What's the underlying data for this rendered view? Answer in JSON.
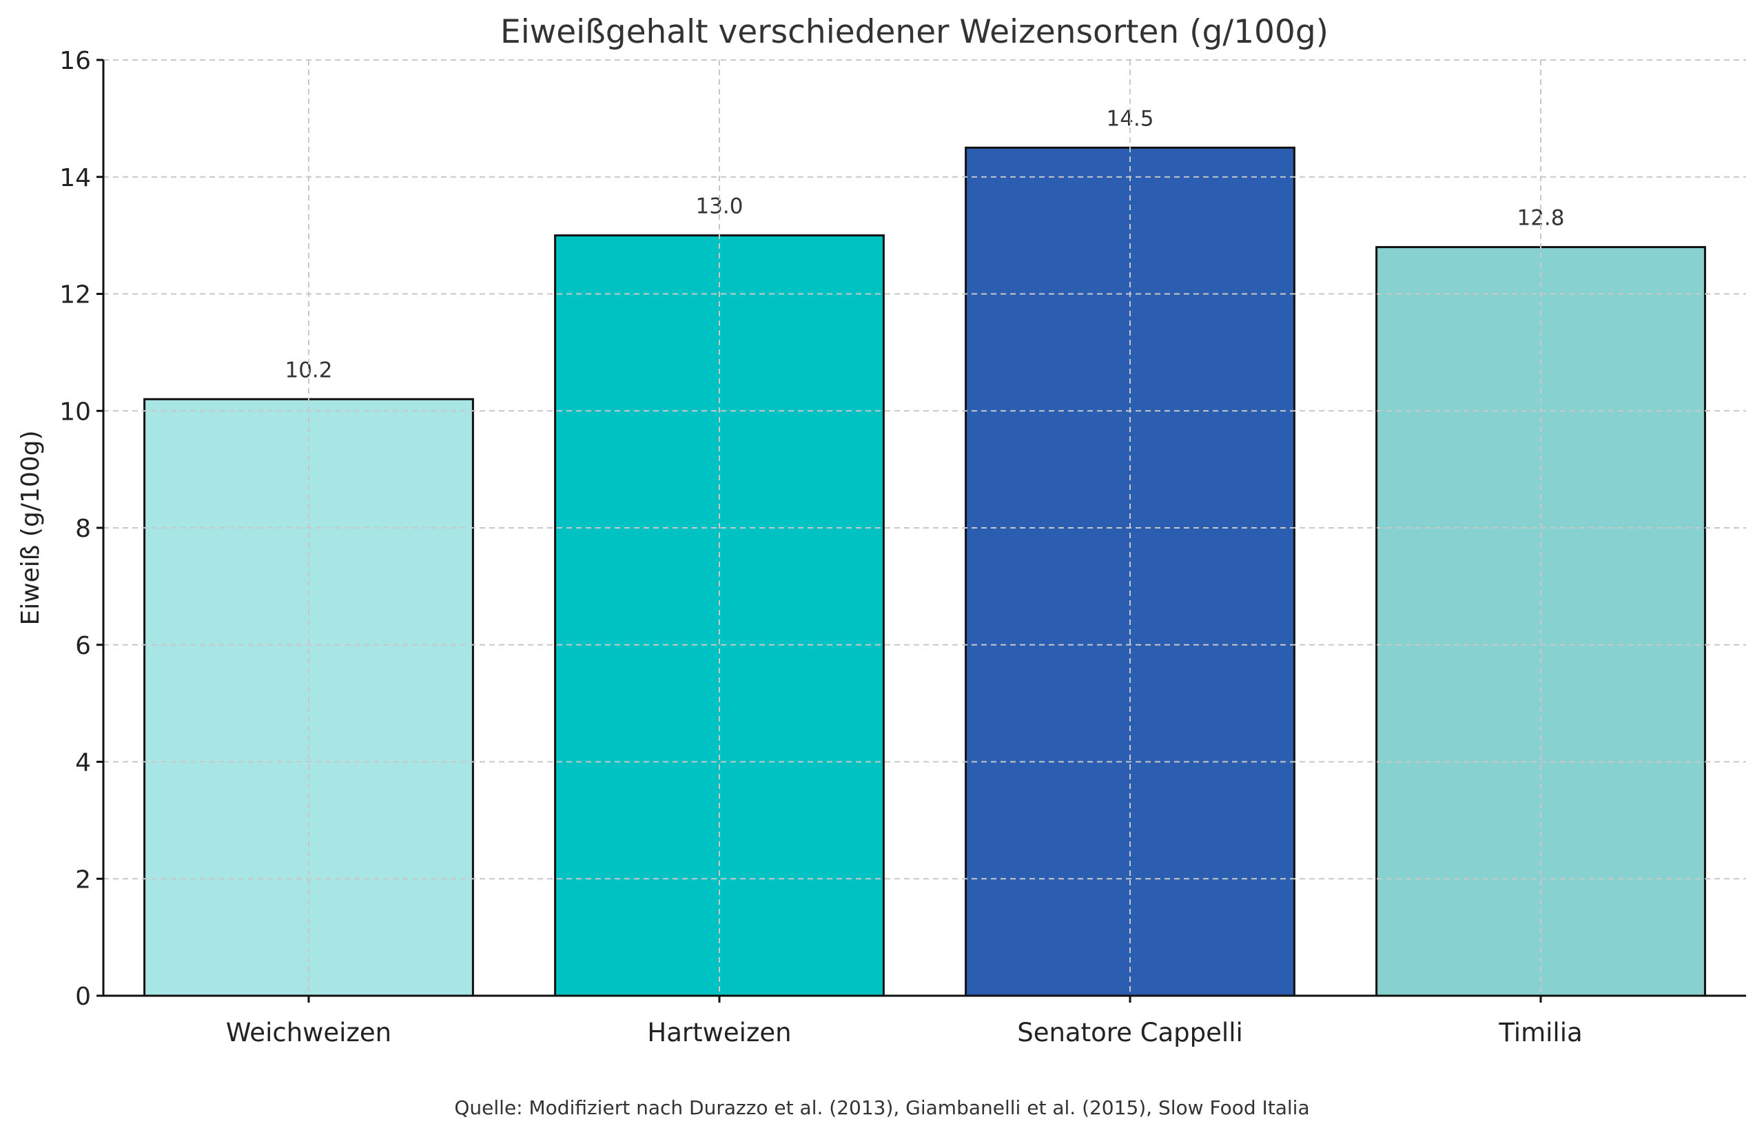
{
  "chart_data": {
    "type": "bar",
    "title": "Eiweißgehalt verschiedener Weizensorten (g/100g)",
    "xlabel": "",
    "ylabel": "Eiweiß (g/100g)",
    "categories": [
      "Weichweizen",
      "Hartweizen",
      "Senatore Cappelli",
      "Timilia"
    ],
    "values": [
      10.2,
      13.0,
      14.5,
      12.8
    ],
    "data_labels": [
      "10.2",
      "13.0",
      "14.5",
      "12.8"
    ],
    "colors": [
      "#a8e6e6",
      "#00c2c2",
      "#2b5db1",
      "#87d1d1"
    ],
    "ylim": [
      0,
      16
    ],
    "yticks": [
      0,
      2,
      4,
      6,
      8,
      10,
      12,
      14,
      16
    ],
    "grid": true,
    "source": "Quelle: Modifiziert nach Durazzo et al. (2013), Giambanelli et al. (2015), Slow Food Italia"
  }
}
